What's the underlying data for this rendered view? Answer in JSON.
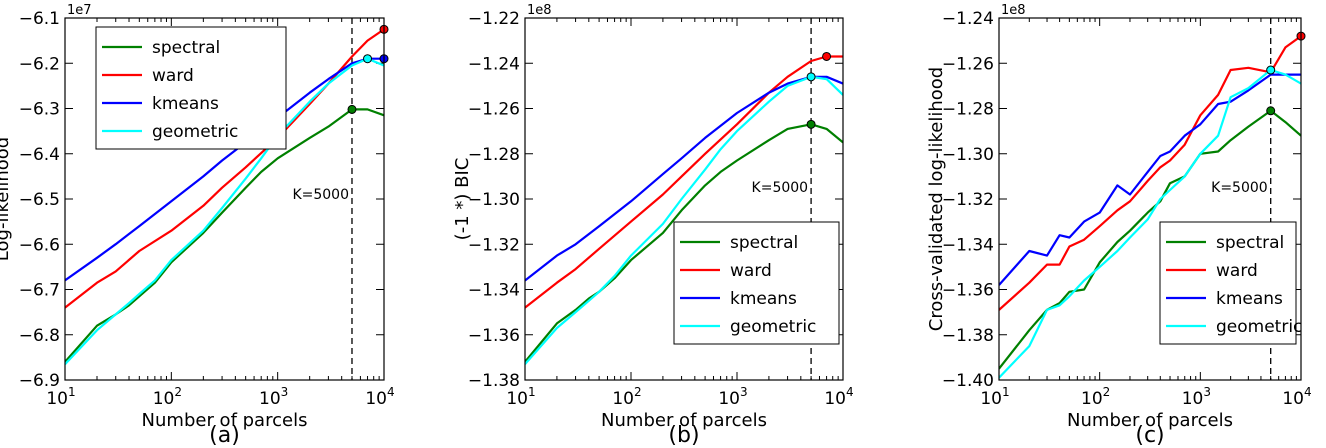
{
  "colors": {
    "spectral": "#008000",
    "ward": "#ff0000",
    "kmeans": "#0000ff",
    "geometric": "#00ffff"
  },
  "chart_data": [
    {
      "type": "line",
      "caption": "(a)",
      "xlabel": "Number of parcels",
      "ylabel": "Log-likelihood",
      "offset_label": "1e7",
      "xscale": "log",
      "xlim": [
        10,
        10000
      ],
      "ylim": [
        -6.9,
        -6.1
      ],
      "x_ticks": [
        10,
        100,
        1000,
        10000
      ],
      "x_tick_labels": [
        {
          "base": "10",
          "exp": "1"
        },
        {
          "base": "10",
          "exp": "2"
        },
        {
          "base": "10",
          "exp": "3"
        },
        {
          "base": "10",
          "exp": "4"
        }
      ],
      "y_ticks": [
        -6.9,
        -6.8,
        -6.7,
        -6.6,
        -6.5,
        -6.4,
        -6.3,
        -6.2,
        -6.1
      ],
      "y_tick_labels": [
        "−6.9",
        "−6.8",
        "−6.7",
        "−6.6",
        "−6.5",
        "−6.4",
        "−6.3",
        "−6.2",
        "−6.1"
      ],
      "grid": false,
      "legend_position": "top-left",
      "vline": {
        "x": 5000,
        "label": "K=5000",
        "label_y": -6.5
      },
      "series": [
        {
          "name": "spectral",
          "x": [
            10,
            20,
            30,
            40,
            50,
            70,
            100,
            200,
            300,
            500,
            700,
            1000,
            2000,
            3000,
            5000,
            7000,
            10000
          ],
          "y": [
            -6.86,
            -6.78,
            -6.755,
            -6.735,
            -6.715,
            -6.685,
            -6.64,
            -6.575,
            -6.53,
            -6.475,
            -6.44,
            -6.41,
            -6.365,
            -6.34,
            -6.302,
            -6.302,
            -6.315
          ],
          "marker": {
            "x": 5000,
            "y": -6.302
          }
        },
        {
          "name": "ward",
          "x": [
            10,
            20,
            30,
            50,
            100,
            200,
            300,
            500,
            1000,
            2000,
            3000,
            5000,
            7000,
            10000
          ],
          "y": [
            -6.74,
            -6.685,
            -6.66,
            -6.615,
            -6.57,
            -6.515,
            -6.475,
            -6.43,
            -6.365,
            -6.29,
            -6.245,
            -6.185,
            -6.15,
            -6.125
          ],
          "marker": {
            "x": 10000,
            "y": -6.125
          }
        },
        {
          "name": "kmeans",
          "x": [
            10,
            20,
            30,
            50,
            100,
            200,
            300,
            500,
            1000,
            2000,
            3000,
            5000,
            7000,
            10000
          ],
          "y": [
            -6.68,
            -6.63,
            -6.6,
            -6.56,
            -6.505,
            -6.45,
            -6.415,
            -6.375,
            -6.32,
            -6.265,
            -6.235,
            -6.2,
            -6.19,
            -6.19
          ],
          "marker": {
            "x": 10000,
            "y": -6.19
          }
        },
        {
          "name": "geometric",
          "x": [
            10,
            20,
            30,
            40,
            50,
            70,
            100,
            200,
            300,
            500,
            700,
            1000,
            2000,
            3000,
            5000,
            7000,
            10000
          ],
          "y": [
            -6.865,
            -6.79,
            -6.755,
            -6.73,
            -6.71,
            -6.68,
            -6.635,
            -6.57,
            -6.52,
            -6.455,
            -6.41,
            -6.36,
            -6.285,
            -6.245,
            -6.205,
            -6.19,
            -6.205
          ],
          "marker": {
            "x": 7000,
            "y": -6.19
          }
        }
      ]
    },
    {
      "type": "line",
      "caption": "(b)",
      "xlabel": "Number of parcels",
      "ylabel": "(-1 *) BIC",
      "offset_label": "1e8",
      "xscale": "log",
      "xlim": [
        10,
        10000
      ],
      "ylim": [
        -1.38,
        -1.22
      ],
      "x_ticks": [
        10,
        100,
        1000,
        10000
      ],
      "x_tick_labels": [
        {
          "base": "10",
          "exp": "1"
        },
        {
          "base": "10",
          "exp": "2"
        },
        {
          "base": "10",
          "exp": "3"
        },
        {
          "base": "10",
          "exp": "4"
        }
      ],
      "y_ticks": [
        -1.38,
        -1.36,
        -1.34,
        -1.32,
        -1.3,
        -1.28,
        -1.26,
        -1.24,
        -1.22
      ],
      "y_tick_labels": [
        "−1.38",
        "−1.36",
        "−1.34",
        "−1.32",
        "−1.30",
        "−1.28",
        "−1.26",
        "−1.24",
        "−1.22"
      ],
      "grid": false,
      "legend_position": "bottom-right",
      "vline": {
        "x": 5000,
        "label": "K=5000",
        "label_y": -1.297
      },
      "series": [
        {
          "name": "spectral",
          "x": [
            10,
            20,
            30,
            40,
            50,
            70,
            100,
            200,
            300,
            500,
            700,
            1000,
            2000,
            3000,
            5000,
            7000,
            10000
          ],
          "y": [
            -1.372,
            -1.355,
            -1.349,
            -1.344,
            -1.341,
            -1.335,
            -1.327,
            -1.315,
            -1.305,
            -1.294,
            -1.288,
            -1.283,
            -1.274,
            -1.269,
            -1.267,
            -1.269,
            -1.275
          ],
          "marker": {
            "x": 5000,
            "y": -1.267
          }
        },
        {
          "name": "ward",
          "x": [
            10,
            20,
            30,
            50,
            100,
            200,
            300,
            500,
            1000,
            2000,
            3000,
            5000,
            7000,
            10000
          ],
          "y": [
            -1.348,
            -1.337,
            -1.331,
            -1.322,
            -1.31,
            -1.298,
            -1.29,
            -1.28,
            -1.267,
            -1.253,
            -1.246,
            -1.239,
            -1.237,
            -1.237
          ],
          "marker": {
            "x": 7000,
            "y": -1.237
          }
        },
        {
          "name": "kmeans",
          "x": [
            10,
            20,
            30,
            50,
            100,
            200,
            300,
            500,
            1000,
            2000,
            3000,
            5000,
            7000,
            10000
          ],
          "y": [
            -1.336,
            -1.325,
            -1.32,
            -1.312,
            -1.301,
            -1.289,
            -1.282,
            -1.273,
            -1.262,
            -1.253,
            -1.249,
            -1.246,
            -1.246,
            -1.249
          ],
          "marker": null
        },
        {
          "name": "geometric",
          "x": [
            10,
            20,
            30,
            40,
            50,
            70,
            100,
            200,
            300,
            500,
            700,
            1000,
            2000,
            3000,
            5000,
            7000,
            10000
          ],
          "y": [
            -1.373,
            -1.357,
            -1.35,
            -1.345,
            -1.341,
            -1.334,
            -1.325,
            -1.311,
            -1.3,
            -1.287,
            -1.278,
            -1.27,
            -1.257,
            -1.25,
            -1.246,
            -1.247,
            -1.254
          ],
          "marker": {
            "x": 5000,
            "y": -1.246
          }
        }
      ]
    },
    {
      "type": "line",
      "caption": "(c)",
      "xlabel": "Number of parcels",
      "ylabel": "Cross-validated log-likelihood",
      "offset_label": "1e8",
      "xscale": "log",
      "xlim": [
        10,
        10000
      ],
      "ylim": [
        -1.4,
        -1.24
      ],
      "x_ticks": [
        10,
        100,
        1000,
        10000
      ],
      "x_tick_labels": [
        {
          "base": "10",
          "exp": "1"
        },
        {
          "base": "10",
          "exp": "2"
        },
        {
          "base": "10",
          "exp": "3"
        },
        {
          "base": "10",
          "exp": "4"
        }
      ],
      "y_ticks": [
        -1.4,
        -1.38,
        -1.36,
        -1.34,
        -1.32,
        -1.3,
        -1.28,
        -1.26,
        -1.24
      ],
      "y_tick_labels": [
        "−1.40",
        "−1.38",
        "−1.36",
        "−1.34",
        "−1.32",
        "−1.30",
        "−1.28",
        "−1.26",
        "−1.24"
      ],
      "grid": false,
      "legend_position": "bottom-right",
      "vline": {
        "x": 5000,
        "label": "K=5000",
        "label_y": -1.317
      },
      "series": [
        {
          "name": "spectral",
          "x": [
            10,
            20,
            30,
            40,
            50,
            70,
            100,
            150,
            200,
            300,
            400,
            500,
            700,
            1000,
            1500,
            2000,
            3000,
            5000,
            7000,
            10000
          ],
          "y": [
            -1.395,
            -1.378,
            -1.369,
            -1.366,
            -1.361,
            -1.36,
            -1.348,
            -1.339,
            -1.334,
            -1.326,
            -1.321,
            -1.313,
            -1.31,
            -1.3,
            -1.299,
            -1.294,
            -1.288,
            -1.281,
            -1.286,
            -1.292
          ],
          "marker": {
            "x": 5000,
            "y": -1.281
          }
        },
        {
          "name": "ward",
          "x": [
            10,
            20,
            30,
            40,
            50,
            70,
            100,
            150,
            200,
            300,
            400,
            500,
            700,
            1000,
            1500,
            2000,
            3000,
            5000,
            7000,
            10000
          ],
          "y": [
            -1.369,
            -1.357,
            -1.349,
            -1.349,
            -1.341,
            -1.338,
            -1.332,
            -1.325,
            -1.321,
            -1.312,
            -1.306,
            -1.303,
            -1.296,
            -1.283,
            -1.274,
            -1.263,
            -1.262,
            -1.264,
            -1.253,
            -1.248
          ],
          "marker": {
            "x": 10000,
            "y": -1.248
          }
        },
        {
          "name": "kmeans",
          "x": [
            10,
            20,
            30,
            40,
            50,
            70,
            100,
            150,
            200,
            300,
            400,
            500,
            700,
            1000,
            1500,
            2000,
            3000,
            5000,
            7000,
            10000
          ],
          "y": [
            -1.358,
            -1.343,
            -1.345,
            -1.336,
            -1.337,
            -1.33,
            -1.326,
            -1.314,
            -1.318,
            -1.308,
            -1.301,
            -1.299,
            -1.292,
            -1.287,
            -1.278,
            -1.277,
            -1.272,
            -1.265,
            -1.265,
            -1.265
          ],
          "marker": null
        },
        {
          "name": "geometric",
          "x": [
            10,
            20,
            30,
            40,
            50,
            70,
            100,
            150,
            200,
            300,
            400,
            500,
            700,
            1000,
            1500,
            2000,
            3000,
            5000,
            7000,
            10000
          ],
          "y": [
            -1.399,
            -1.385,
            -1.369,
            -1.367,
            -1.363,
            -1.356,
            -1.35,
            -1.343,
            -1.337,
            -1.329,
            -1.32,
            -1.316,
            -1.31,
            -1.3,
            -1.292,
            -1.275,
            -1.271,
            -1.263,
            -1.265,
            -1.269
          ],
          "marker": {
            "x": 5000,
            "y": -1.263
          }
        }
      ]
    }
  ]
}
